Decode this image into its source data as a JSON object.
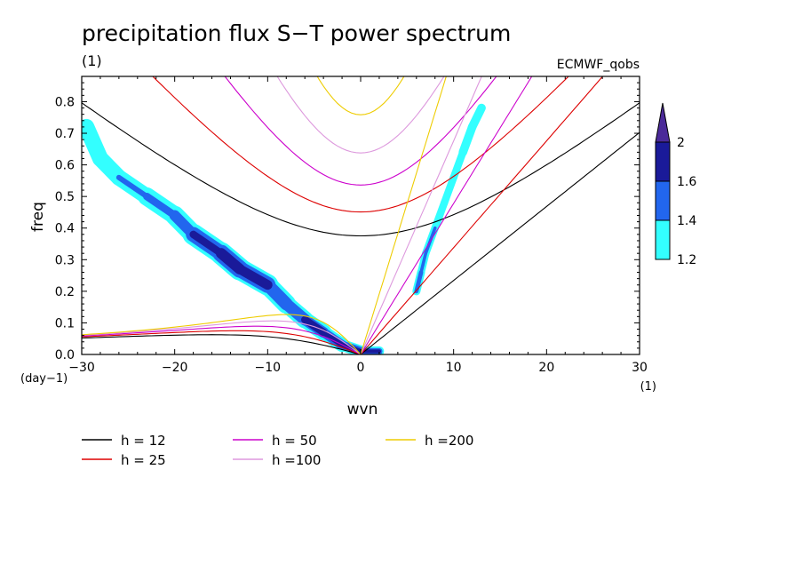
{
  "chart_data": {
    "type": "contour",
    "title": "precipitation flux S−T power spectrum",
    "subtitle_left": "(1)",
    "subtitle_right": "ECMWF_qobs",
    "xlabel": "wvn",
    "ylabel": "freq",
    "x_unit": "(1)",
    "y_unit": "(day−1)",
    "xlim": [
      -30,
      30
    ],
    "ylim": [
      0,
      0.88
    ],
    "x_ticks": [
      {
        "value": -30,
        "label": "−30"
      },
      {
        "value": -20,
        "label": "−20"
      },
      {
        "value": -10,
        "label": "−10"
      },
      {
        "value": 0,
        "label": "0"
      },
      {
        "value": 10,
        "label": "10"
      },
      {
        "value": 20,
        "label": "20"
      },
      {
        "value": 30,
        "label": "30"
      }
    ],
    "y_ticks": [
      {
        "value": 0.0,
        "label": "0.0"
      },
      {
        "value": 0.1,
        "label": "0.1"
      },
      {
        "value": 0.2,
        "label": "0.2"
      },
      {
        "value": 0.3,
        "label": "0.3"
      },
      {
        "value": 0.4,
        "label": "0.4"
      },
      {
        "value": 0.5,
        "label": "0.5"
      },
      {
        "value": 0.6,
        "label": "0.6"
      },
      {
        "value": 0.7,
        "label": "0.7"
      },
      {
        "value": 0.8,
        "label": "0.8"
      }
    ],
    "colorbar": {
      "levels": [
        {
          "label": "1.2",
          "color": "#33ffff"
        },
        {
          "label": "1.4",
          "color": "#2266ee"
        },
        {
          "label": "1.6",
          "color": "#1a1a99"
        },
        {
          "label": "2",
          "color": "#4b2a99"
        }
      ],
      "fill_colors": [
        "#33ffff",
        "#2266ee",
        "#1a1a99",
        "#4b2a99"
      ]
    },
    "dispersion_curves": [
      {
        "name": "h = 12",
        "h": 12,
        "color": "#000000"
      },
      {
        "name": "h = 25",
        "h": 25,
        "color": "#dd0000"
      },
      {
        "name": "h = 50",
        "h": 50,
        "color": "#cc00cc"
      },
      {
        "name": "h =100",
        "h": 100,
        "color": "#dd99dd"
      },
      {
        "name": "h =200",
        "h": 200,
        "color": "#eecc00"
      }
    ],
    "spectral_features": [
      {
        "name": "westward-band",
        "points": [
          [
            -29.5,
            0.72
          ],
          [
            -28,
            0.62
          ],
          [
            -26,
            0.56
          ],
          [
            -23,
            0.5
          ],
          [
            -20,
            0.44
          ],
          [
            -18,
            0.38
          ],
          [
            -15,
            0.32
          ],
          [
            -13,
            0.27
          ],
          [
            -10,
            0.22
          ],
          [
            -8,
            0.16
          ],
          [
            -6,
            0.11
          ],
          [
            -4,
            0.07
          ],
          [
            -2,
            0.03
          ],
          [
            0,
            0.01
          ],
          [
            2,
            0.01
          ]
        ],
        "w1": [
          3.0,
          3.0,
          3.0,
          3.4,
          3.6,
          4.0,
          4.2,
          4.2,
          4.0,
          3.6,
          3.2,
          3.0,
          2.6,
          2.2,
          1.8
        ],
        "w2": [
          0.0,
          0.0,
          1.0,
          1.4,
          2.0,
          2.8,
          3.2,
          3.2,
          3.0,
          2.4,
          2.2,
          2.0,
          1.8,
          1.6,
          1.2
        ],
        "w3": [
          0.0,
          0.0,
          0.0,
          0.0,
          0.0,
          1.4,
          2.0,
          2.0,
          1.8,
          0.0,
          1.4,
          1.4,
          1.0,
          0.9,
          0.7
        ]
      },
      {
        "name": "eastward-band",
        "points": [
          [
            6,
            0.2
          ],
          [
            6.5,
            0.26
          ],
          [
            7,
            0.32
          ],
          [
            8,
            0.4
          ],
          [
            9,
            0.48
          ],
          [
            10,
            0.56
          ],
          [
            11,
            0.64
          ],
          [
            12,
            0.72
          ],
          [
            13,
            0.78
          ]
        ],
        "w1": [
          1.6,
          1.5,
          1.4,
          1.4,
          1.4,
          1.4,
          1.6,
          1.8,
          1.6
        ],
        "w2": [
          1.0,
          0.8,
          0.6,
          0.6,
          0.0,
          0.0,
          0.0,
          0.6,
          0.0
        ],
        "w3": [
          0.6,
          0.0,
          0.0,
          0.0,
          0.0,
          0.0,
          0.0,
          0.0,
          0.0
        ]
      }
    ],
    "grid": false,
    "legend_position": "bottom-left"
  }
}
